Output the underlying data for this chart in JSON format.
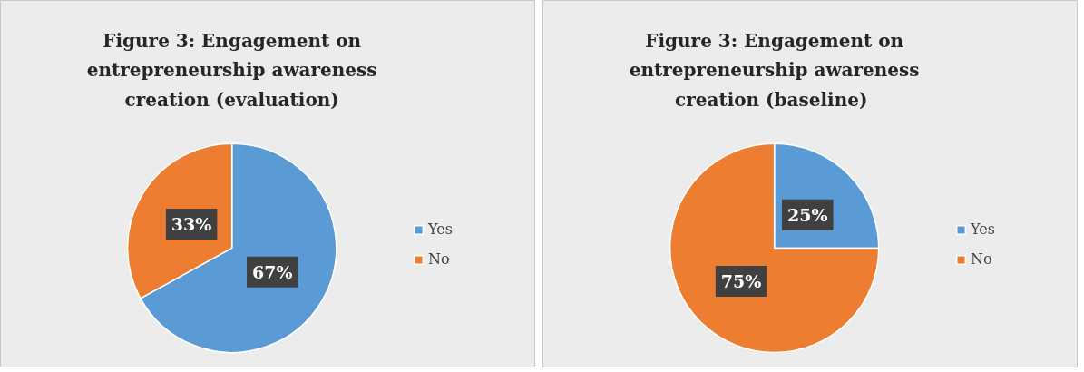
{
  "chart_data": [
    {
      "type": "pie",
      "title": "Figure 3: Engagement on entrepreneurship awareness creation (evaluation)",
      "categories": [
        "Yes",
        "No"
      ],
      "values": [
        67,
        33
      ],
      "colors": [
        "#5b9bd5",
        "#ed7d31"
      ],
      "value_labels": [
        "67%",
        "33%"
      ],
      "legend": "right"
    },
    {
      "type": "pie",
      "title": "Figure 3: Engagement on entrepreneurship awareness creation  (baseline)",
      "categories": [
        "Yes",
        "No"
      ],
      "values": [
        25,
        75
      ],
      "colors": [
        "#5b9bd5",
        "#ed7d31"
      ],
      "value_labels": [
        "25%",
        "75%"
      ],
      "legend": "right"
    }
  ]
}
